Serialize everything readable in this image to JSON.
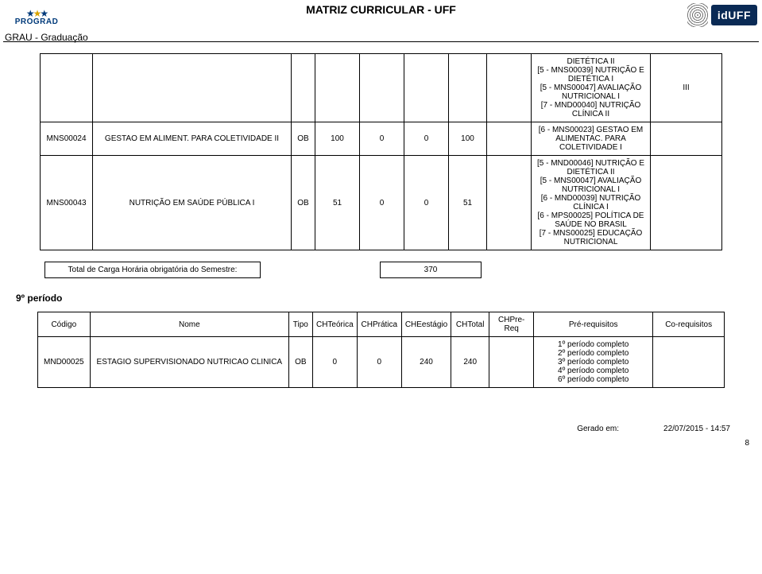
{
  "header": {
    "title": "MATRIZ CURRICULAR - UFF",
    "logo_text": "PROGRAD",
    "iduff": "idUFF",
    "sub": "GRAU - Graduação"
  },
  "table1": {
    "rows": [
      {
        "code": "",
        "name": "",
        "tipo": "",
        "n1": "",
        "n2": "",
        "n3": "",
        "n4": "",
        "pre": "",
        "req": "DIETÉTICA II\n[5 - MNS00039] NUTRIÇÃO E DIETÉTICA I\n[5 - MNS00047] AVALIAÇÃO NUTRICIONAL I\n[7 - MND00040] NUTRIÇÃO CLÍNICA II",
        "co": "III"
      },
      {
        "code": "MNS00024",
        "name": "GESTAO EM ALIMENT. PARA COLETIVIDADE II",
        "tipo": "OB",
        "n1": "100",
        "n2": "0",
        "n3": "0",
        "n4": "100",
        "pre": "",
        "req": "[6 - MNS00023] GESTAO EM ALIMENTAC. PARA COLETIVIDADE I",
        "co": ""
      },
      {
        "code": "MNS00043",
        "name": "NUTRIÇÃO EM SAÚDE PÚBLICA I",
        "tipo": "OB",
        "n1": "51",
        "n2": "0",
        "n3": "0",
        "n4": "51",
        "pre": "",
        "req": "[5 - MND00046] NUTRIÇÃO E DIETÉTICA II\n[5 - MNS00047] AVALIAÇÃO NUTRICIONAL I\n[6 - MND00039] NUTRIÇÃO CLÍNICA I\n[6 - MPS00025] POLÍTICA DE SAÚDE NO BRASIL\n[7 - MNS00025] EDUCAÇÃO NUTRICIONAL",
        "co": ""
      }
    ]
  },
  "totals": {
    "label": "Total de  Carga Horária obrigatória do Semestre:",
    "value": "370"
  },
  "period_label": "9º período",
  "table2": {
    "headers": {
      "code": "Código",
      "name": "Nome",
      "tipo": "Tipo",
      "n1": "CHTeórica",
      "n2": "CHPrática",
      "n3": "CHEestágio",
      "n4": "CHTotal",
      "pre": "CHPre-Req",
      "req": "Pré-requisitos",
      "co": "Co-requisitos"
    },
    "row": {
      "code": "MND00025",
      "name": "ESTAGIO SUPERVISIONADO NUTRICAO CLINICA",
      "tipo": "OB",
      "n1": "0",
      "n2": "0",
      "n3": "240",
      "n4": "240",
      "pre": "",
      "req": "1º período completo\n2º período completo\n3º período completo\n4º período completo\n6º período completo",
      "co": ""
    }
  },
  "footer": {
    "gerado_label": "Gerado em:",
    "gerado_date": "22/07/2015 - 14:57",
    "page": "8"
  }
}
